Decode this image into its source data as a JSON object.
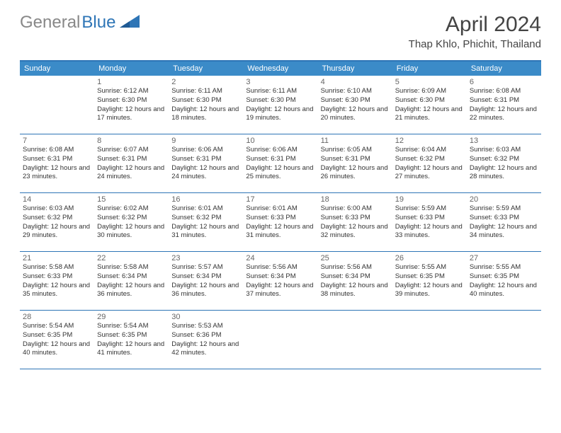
{
  "logo": {
    "text_gray": "General",
    "text_blue": "Blue",
    "shape_color": "#2e75b6"
  },
  "title": "April 2024",
  "location": "Thap Khlo, Phichit, Thailand",
  "colors": {
    "header_bar": "#3b8bc8",
    "border": "#2e75b6",
    "weekday_text": "#ffffff",
    "daynum_text": "#666666",
    "body_text": "#333333",
    "title_text": "#444444",
    "logo_gray": "#888888"
  },
  "weekdays": [
    "Sunday",
    "Monday",
    "Tuesday",
    "Wednesday",
    "Thursday",
    "Friday",
    "Saturday"
  ],
  "weeks": [
    [
      null,
      {
        "n": "1",
        "sr": "Sunrise: 6:12 AM",
        "ss": "Sunset: 6:30 PM",
        "dl": "Daylight: 12 hours and 17 minutes."
      },
      {
        "n": "2",
        "sr": "Sunrise: 6:11 AM",
        "ss": "Sunset: 6:30 PM",
        "dl": "Daylight: 12 hours and 18 minutes."
      },
      {
        "n": "3",
        "sr": "Sunrise: 6:11 AM",
        "ss": "Sunset: 6:30 PM",
        "dl": "Daylight: 12 hours and 19 minutes."
      },
      {
        "n": "4",
        "sr": "Sunrise: 6:10 AM",
        "ss": "Sunset: 6:30 PM",
        "dl": "Daylight: 12 hours and 20 minutes."
      },
      {
        "n": "5",
        "sr": "Sunrise: 6:09 AM",
        "ss": "Sunset: 6:30 PM",
        "dl": "Daylight: 12 hours and 21 minutes."
      },
      {
        "n": "6",
        "sr": "Sunrise: 6:08 AM",
        "ss": "Sunset: 6:31 PM",
        "dl": "Daylight: 12 hours and 22 minutes."
      }
    ],
    [
      {
        "n": "7",
        "sr": "Sunrise: 6:08 AM",
        "ss": "Sunset: 6:31 PM",
        "dl": "Daylight: 12 hours and 23 minutes."
      },
      {
        "n": "8",
        "sr": "Sunrise: 6:07 AM",
        "ss": "Sunset: 6:31 PM",
        "dl": "Daylight: 12 hours and 24 minutes."
      },
      {
        "n": "9",
        "sr": "Sunrise: 6:06 AM",
        "ss": "Sunset: 6:31 PM",
        "dl": "Daylight: 12 hours and 24 minutes."
      },
      {
        "n": "10",
        "sr": "Sunrise: 6:06 AM",
        "ss": "Sunset: 6:31 PM",
        "dl": "Daylight: 12 hours and 25 minutes."
      },
      {
        "n": "11",
        "sr": "Sunrise: 6:05 AM",
        "ss": "Sunset: 6:31 PM",
        "dl": "Daylight: 12 hours and 26 minutes."
      },
      {
        "n": "12",
        "sr": "Sunrise: 6:04 AM",
        "ss": "Sunset: 6:32 PM",
        "dl": "Daylight: 12 hours and 27 minutes."
      },
      {
        "n": "13",
        "sr": "Sunrise: 6:03 AM",
        "ss": "Sunset: 6:32 PM",
        "dl": "Daylight: 12 hours and 28 minutes."
      }
    ],
    [
      {
        "n": "14",
        "sr": "Sunrise: 6:03 AM",
        "ss": "Sunset: 6:32 PM",
        "dl": "Daylight: 12 hours and 29 minutes."
      },
      {
        "n": "15",
        "sr": "Sunrise: 6:02 AM",
        "ss": "Sunset: 6:32 PM",
        "dl": "Daylight: 12 hours and 30 minutes."
      },
      {
        "n": "16",
        "sr": "Sunrise: 6:01 AM",
        "ss": "Sunset: 6:32 PM",
        "dl": "Daylight: 12 hours and 31 minutes."
      },
      {
        "n": "17",
        "sr": "Sunrise: 6:01 AM",
        "ss": "Sunset: 6:33 PM",
        "dl": "Daylight: 12 hours and 31 minutes."
      },
      {
        "n": "18",
        "sr": "Sunrise: 6:00 AM",
        "ss": "Sunset: 6:33 PM",
        "dl": "Daylight: 12 hours and 32 minutes."
      },
      {
        "n": "19",
        "sr": "Sunrise: 5:59 AM",
        "ss": "Sunset: 6:33 PM",
        "dl": "Daylight: 12 hours and 33 minutes."
      },
      {
        "n": "20",
        "sr": "Sunrise: 5:59 AM",
        "ss": "Sunset: 6:33 PM",
        "dl": "Daylight: 12 hours and 34 minutes."
      }
    ],
    [
      {
        "n": "21",
        "sr": "Sunrise: 5:58 AM",
        "ss": "Sunset: 6:33 PM",
        "dl": "Daylight: 12 hours and 35 minutes."
      },
      {
        "n": "22",
        "sr": "Sunrise: 5:58 AM",
        "ss": "Sunset: 6:34 PM",
        "dl": "Daylight: 12 hours and 36 minutes."
      },
      {
        "n": "23",
        "sr": "Sunrise: 5:57 AM",
        "ss": "Sunset: 6:34 PM",
        "dl": "Daylight: 12 hours and 36 minutes."
      },
      {
        "n": "24",
        "sr": "Sunrise: 5:56 AM",
        "ss": "Sunset: 6:34 PM",
        "dl": "Daylight: 12 hours and 37 minutes."
      },
      {
        "n": "25",
        "sr": "Sunrise: 5:56 AM",
        "ss": "Sunset: 6:34 PM",
        "dl": "Daylight: 12 hours and 38 minutes."
      },
      {
        "n": "26",
        "sr": "Sunrise: 5:55 AM",
        "ss": "Sunset: 6:35 PM",
        "dl": "Daylight: 12 hours and 39 minutes."
      },
      {
        "n": "27",
        "sr": "Sunrise: 5:55 AM",
        "ss": "Sunset: 6:35 PM",
        "dl": "Daylight: 12 hours and 40 minutes."
      }
    ],
    [
      {
        "n": "28",
        "sr": "Sunrise: 5:54 AM",
        "ss": "Sunset: 6:35 PM",
        "dl": "Daylight: 12 hours and 40 minutes."
      },
      {
        "n": "29",
        "sr": "Sunrise: 5:54 AM",
        "ss": "Sunset: 6:35 PM",
        "dl": "Daylight: 12 hours and 41 minutes."
      },
      {
        "n": "30",
        "sr": "Sunrise: 5:53 AM",
        "ss": "Sunset: 6:36 PM",
        "dl": "Daylight: 12 hours and 42 minutes."
      },
      null,
      null,
      null,
      null
    ]
  ]
}
